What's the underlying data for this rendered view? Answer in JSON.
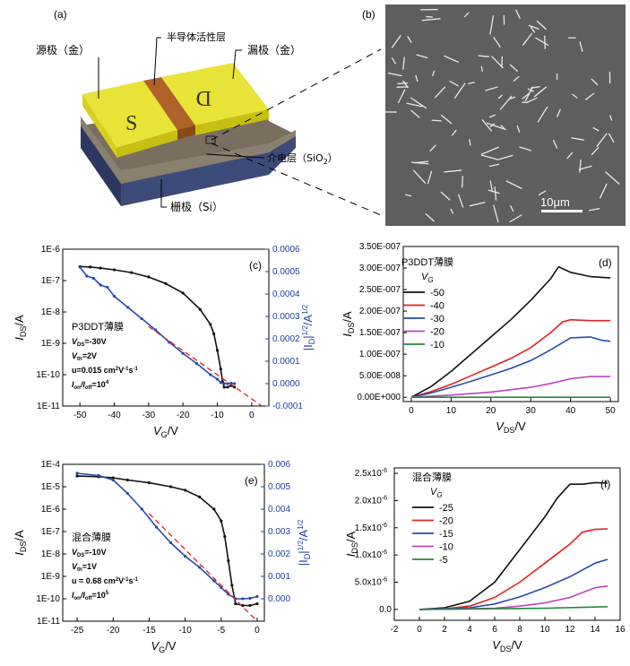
{
  "panels": {
    "a": {
      "label": "(a)",
      "source": "源极（金）",
      "drain": "漏极（金）",
      "semiconductor": "半导体活性层",
      "dielectric": "介电层（SiO",
      "dielectric_sub": "2",
      "dielectric_close": "）",
      "gate": "栅极（Si）",
      "s_letter": "S",
      "d_letter": "D"
    },
    "b": {
      "label": "(b)",
      "scalebar": "10μm"
    }
  },
  "chart_data": [
    {
      "id": "c",
      "type": "line",
      "panel_label": "(c)",
      "xlabel": "V_G/V",
      "ylabel": "I_DS/A",
      "y2label": "|I_D|^1/2/A^1/2",
      "xlim": [
        -55,
        5
      ],
      "y_scale": "log",
      "ylim": [
        1e-11,
        1e-06
      ],
      "y2lim": [
        -0.0001,
        0.0006
      ],
      "xticks": [
        -50,
        -40,
        -30,
        -20,
        -10,
        0
      ],
      "yticks": [
        "1E-11",
        "1E-10",
        "1E-9",
        "1E-8",
        "1E-7",
        "1E-6"
      ],
      "y2ticks": [
        "-0.0001",
        "0.0000",
        "0.0001",
        "0.0002",
        "0.0003",
        "0.0004",
        "0.0005",
        "0.0006"
      ],
      "annotations": {
        "film": "P3DDT薄膜",
        "vds": "=-30V",
        "vth": "=2V",
        "mu": "u=0.015 cm",
        "onoff": "=10"
      },
      "series": [
        {
          "color": "#111111",
          "axis": "left",
          "x": [
            -50,
            -47,
            -44,
            -40,
            -35,
            -30,
            -25,
            -20,
            -15,
            -12,
            -11,
            -10,
            -9,
            -8.5,
            -8,
            -7,
            -6,
            -5
          ],
          "y": [
            2.8e-07,
            2.7e-07,
            2.5e-07,
            2.2e-07,
            1.8e-07,
            1.3e-07,
            8e-08,
            4e-08,
            1.2e-08,
            4e-09,
            2e-09,
            6e-10,
            1.5e-10,
            6e-11,
            4e-11,
            4e-11,
            4.5e-11,
            4e-11
          ]
        },
        {
          "color": "#2a4aa8",
          "axis": "right",
          "x": [
            -50,
            -48,
            -46,
            -44,
            -42,
            -40,
            -36,
            -32,
            -28,
            -24,
            -20,
            -16,
            -12,
            -10,
            -9,
            -8,
            -7,
            -6,
            -5
          ],
          "y": [
            0.00052,
            0.00048,
            0.00047,
            0.00044,
            0.00043,
            0.00039,
            0.00034,
            0.00029,
            0.00024,
            0.000185,
            0.000135,
            9e-05,
            4e-05,
            2e-05,
            5e-06,
            0,
            0,
            2e-06,
            0
          ]
        },
        {
          "color": "#e02020",
          "axis": "right",
          "dashed": true,
          "x": [
            -30,
            3
          ],
          "y": [
            0.000255,
            -0.0001
          ]
        }
      ]
    },
    {
      "id": "d",
      "type": "line",
      "panel_label": "(d)",
      "xlabel": "V_DS/V",
      "ylabel": "I_DS/A",
      "title": "P3DDT薄膜",
      "xlim": [
        -2,
        52
      ],
      "ylim": [
        -1e-08,
        3.5e-07
      ],
      "xticks": [
        0,
        10,
        20,
        30,
        40,
        50
      ],
      "yticks": [
        "0.00E+000",
        "5.00E-008",
        "1.00E-007",
        "1.50E-007",
        "2.00E-007",
        "2.50E-007",
        "3.00E-007",
        "3.50E-007"
      ],
      "legend_title": "V",
      "legend_sub": "G",
      "series": [
        {
          "name": "-50",
          "color": "#111111",
          "x": [
            0,
            5,
            10,
            15,
            20,
            25,
            30,
            35,
            37,
            40,
            45,
            50
          ],
          "y": [
            0,
            2.5e-08,
            6e-08,
            1e-07,
            1.4e-07,
            1.8e-07,
            2.25e-07,
            2.75e-07,
            3.03e-07,
            2.9e-07,
            2.8e-07,
            2.77e-07
          ]
        },
        {
          "name": "-40",
          "color": "#e02020",
          "x": [
            0,
            5,
            10,
            15,
            20,
            25,
            30,
            35,
            38,
            40,
            45,
            50
          ],
          "y": [
            0,
            1.3e-08,
            3e-08,
            5e-08,
            7e-08,
            9e-08,
            1.15e-07,
            1.5e-07,
            1.75e-07,
            1.8e-07,
            1.78e-07,
            1.78e-07
          ]
        },
        {
          "name": "-30",
          "color": "#2a4aa8",
          "x": [
            0,
            5,
            10,
            15,
            20,
            25,
            30,
            35,
            40,
            45,
            48,
            50
          ],
          "y": [
            0,
            1e-08,
            2.3e-08,
            3.7e-08,
            5.2e-08,
            6.7e-08,
            8.5e-08,
            1.1e-07,
            1.38e-07,
            1.4e-07,
            1.32e-07,
            1.3e-07
          ]
        },
        {
          "name": "-20",
          "color": "#c040c0",
          "x": [
            0,
            10,
            20,
            30,
            35,
            40,
            45,
            50
          ],
          "y": [
            0,
            5e-09,
            1.2e-08,
            2.3e-08,
            3.2e-08,
            4.3e-08,
            4.8e-08,
            4.8e-08
          ]
        },
        {
          "name": "-10",
          "color": "#208a3a",
          "x": [
            0,
            50
          ],
          "y": [
            0,
            0
          ]
        }
      ]
    },
    {
      "id": "e",
      "type": "line",
      "panel_label": "(e)",
      "xlabel": "V_G/V",
      "ylabel": "I_DS/A",
      "y2label": "|I_D|^1/2/A^1/2",
      "xlim": [
        -27,
        1
      ],
      "y_scale": "log",
      "ylim": [
        1e-11,
        0.0001
      ],
      "y2lim": [
        -0.001,
        0.006
      ],
      "xticks": [
        -25,
        -20,
        -15,
        -10,
        -5,
        0
      ],
      "yticks": [
        "1E-11",
        "1E-10",
        "1E-9",
        "1E-8",
        "1E-7",
        "1E-6",
        "1E-5",
        "1E-4"
      ],
      "y2ticks": [
        "0.000",
        "0.001",
        "0.002",
        "0.003",
        "0.004",
        "0.005",
        "0.006"
      ],
      "annotations": {
        "film": "混合薄膜",
        "vds": "=-10V",
        "vth": "=1V",
        "mu": "u = 0.68 cm",
        "onoff": "=10"
      },
      "series": [
        {
          "color": "#111111",
          "axis": "left",
          "x": [
            -25,
            -22,
            -20,
            -18,
            -15,
            -12,
            -10,
            -8,
            -6,
            -5,
            -4.5,
            -4,
            -3.5,
            -3,
            -2,
            -1,
            0
          ],
          "y": [
            3e-05,
            2.8e-05,
            2.5e-05,
            2e-05,
            1.5e-05,
            1e-05,
            7e-06,
            3.5e-06,
            1e-06,
            3e-07,
            6e-08,
            5e-09,
            4e-10,
            6e-11,
            5e-11,
            5e-11,
            6e-11
          ]
        },
        {
          "color": "#2a4aa8",
          "axis": "right",
          "x": [
            -25,
            -22,
            -20,
            -18,
            -16,
            -14,
            -12,
            -10,
            -8,
            -6,
            -5,
            -4,
            -3,
            -2,
            -1,
            0
          ],
          "y": [
            0.0056,
            0.0055,
            0.0053,
            0.0047,
            0.004,
            0.0032,
            0.0025,
            0.0019,
            0.0014,
            0.0008,
            0.0005,
            0.0002,
            0,
            0,
            2e-05,
            0.0001
          ]
        },
        {
          "color": "#e02020",
          "axis": "right",
          "dashed": true,
          "x": [
            -15,
            0
          ],
          "y": [
            0.0038,
            -0.001
          ]
        }
      ]
    },
    {
      "id": "f",
      "type": "line",
      "panel_label": "(f)",
      "xlabel": "V_DS/V",
      "ylabel": "I_DS/A",
      "title": "混合薄膜",
      "xlim": [
        -2,
        16
      ],
      "ylim": [
        -2e-06,
        2.6e-05
      ],
      "xticks": [
        -2,
        0,
        2,
        4,
        6,
        8,
        10,
        12,
        14,
        16
      ],
      "yticks": [
        "0.0",
        "5.0x10",
        "1.0x10",
        "1.5x10",
        "2.0x10",
        "2.5x10"
      ],
      "legend_title": "V",
      "legend_sub": "G",
      "series": [
        {
          "name": "-25",
          "color": "#111111",
          "x": [
            0,
            2,
            4,
            6,
            8,
            10,
            11,
            12,
            13,
            14,
            15
          ],
          "y": [
            0,
            3e-07,
            1.5e-06,
            5e-06,
            1.1e-05,
            1.7e-05,
            2.05e-05,
            2.3e-05,
            2.3e-05,
            2.33e-05,
            2.32e-05
          ]
        },
        {
          "name": "-20",
          "color": "#e02020",
          "x": [
            0,
            2,
            4,
            6,
            8,
            10,
            12,
            13,
            14,
            15
          ],
          "y": [
            0,
            1e-07,
            6e-07,
            2.2e-06,
            5e-06,
            8.5e-06,
            1.2e-05,
            1.42e-05,
            1.47e-05,
            1.48e-05
          ]
        },
        {
          "name": "-15",
          "color": "#2a4aa8",
          "x": [
            0,
            4,
            6,
            8,
            10,
            12,
            14,
            15
          ],
          "y": [
            0,
            3e-07,
            1e-06,
            2.3e-06,
            4e-06,
            6e-06,
            8.5e-06,
            9.2e-06
          ]
        },
        {
          "name": "-10",
          "color": "#c040c0",
          "x": [
            0,
            6,
            8,
            10,
            12,
            14,
            15
          ],
          "y": [
            0,
            2e-07,
            6e-07,
            1.2e-06,
            2.2e-06,
            4e-06,
            4.3e-06
          ]
        },
        {
          "name": "-5",
          "color": "#208a3a",
          "x": [
            0,
            10,
            15
          ],
          "y": [
            0,
            2e-07,
            5e-07
          ]
        }
      ]
    }
  ]
}
